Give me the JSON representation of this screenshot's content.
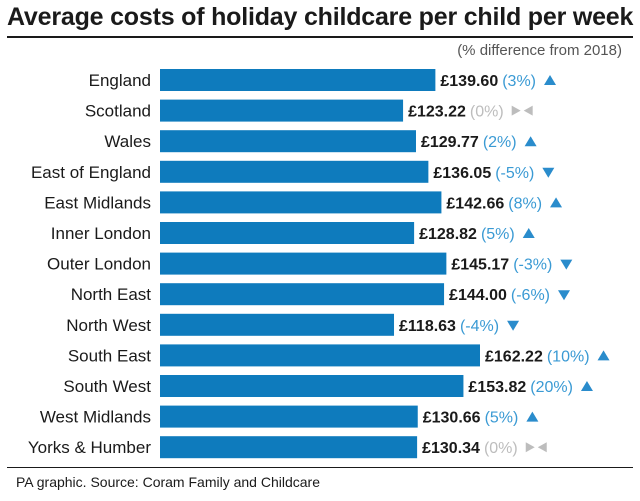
{
  "chart_data": {
    "type": "bar",
    "orientation": "horizontal",
    "title": "Average costs of holiday childcare per child per week",
    "subtitle": "(% difference from 2018)",
    "categories": [
      "England",
      "Scotland",
      "Wales",
      "East of England",
      "East Midlands",
      "Inner London",
      "Outer London",
      "North East",
      "North West",
      "South East",
      "South West",
      "West Midlands",
      "Yorks & Humber"
    ],
    "values": [
      139.6,
      123.22,
      129.77,
      136.05,
      142.66,
      128.82,
      145.17,
      144.0,
      118.63,
      162.22,
      153.82,
      130.66,
      130.34
    ],
    "value_labels": [
      "£139.60",
      "£123.22",
      "£129.77",
      "£136.05",
      "£142.66",
      "£128.82",
      "£145.17",
      "£144.00",
      "£118.63",
      "£162.22",
      "£153.82",
      "£130.66",
      "£130.34"
    ],
    "pct_change": [
      3,
      0,
      2,
      -5,
      8,
      5,
      -3,
      -6,
      -4,
      10,
      20,
      5,
      0
    ],
    "pct_labels": [
      "(3%)",
      "(0%)",
      "(2%)",
      "(-5%)",
      "(8%)",
      "(5%)",
      "(-3%)",
      "(-6%)",
      "(-4%)",
      "(10%)",
      "(20%)",
      "(5%)",
      "(0%)"
    ],
    "source": "PA graphic. Source: Coram Family and Childcare",
    "colors": {
      "bar": "#0e7bbd",
      "pct_text": "#3a9ad4",
      "arrow": "#2a8ccc",
      "neutral": "#bdbdbd"
    }
  }
}
